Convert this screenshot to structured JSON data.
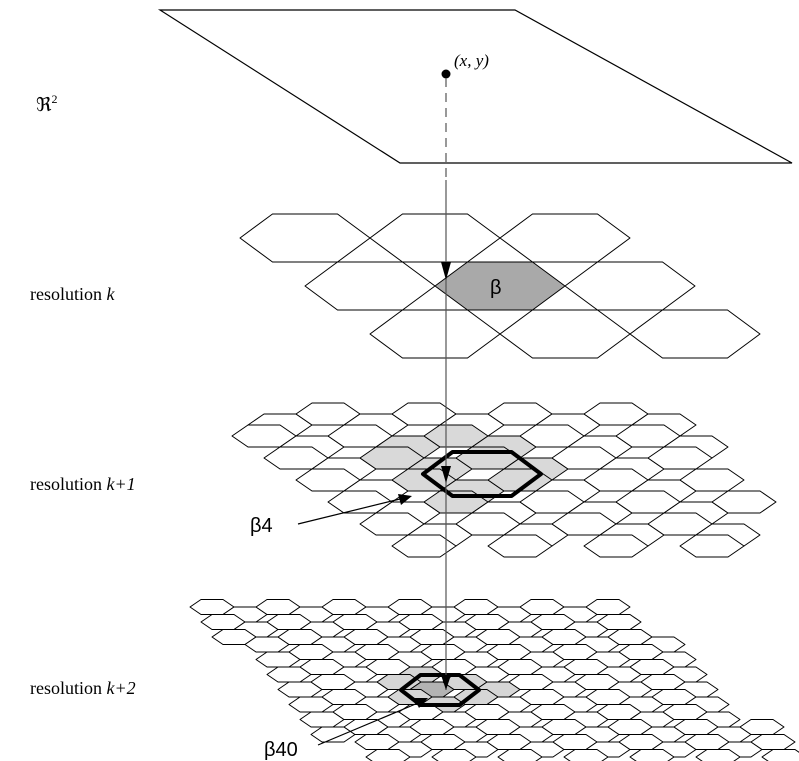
{
  "plane": {
    "label": "ℜ",
    "label_exponent": "2",
    "point_label": "(x, y)"
  },
  "levels": [
    {
      "label_prefix": "resolution ",
      "label_var": "k"
    },
    {
      "label_prefix": "resolution ",
      "label_var": "k+1"
    },
    {
      "label_prefix": "resolution ",
      "label_var": "k+2"
    }
  ],
  "cells": {
    "parent": "β",
    "child": "β4",
    "grandchild": "β40"
  },
  "colors": {
    "stroke": "#000000",
    "parent_fill": "#a9a9a9",
    "child_fill": "#b7b7b7",
    "neighborhood_fill": "#d9d9d9",
    "grandchild_fill": "#b3b3b3",
    "grandchild_neighborhood_fill": "#d6d6d6"
  }
}
